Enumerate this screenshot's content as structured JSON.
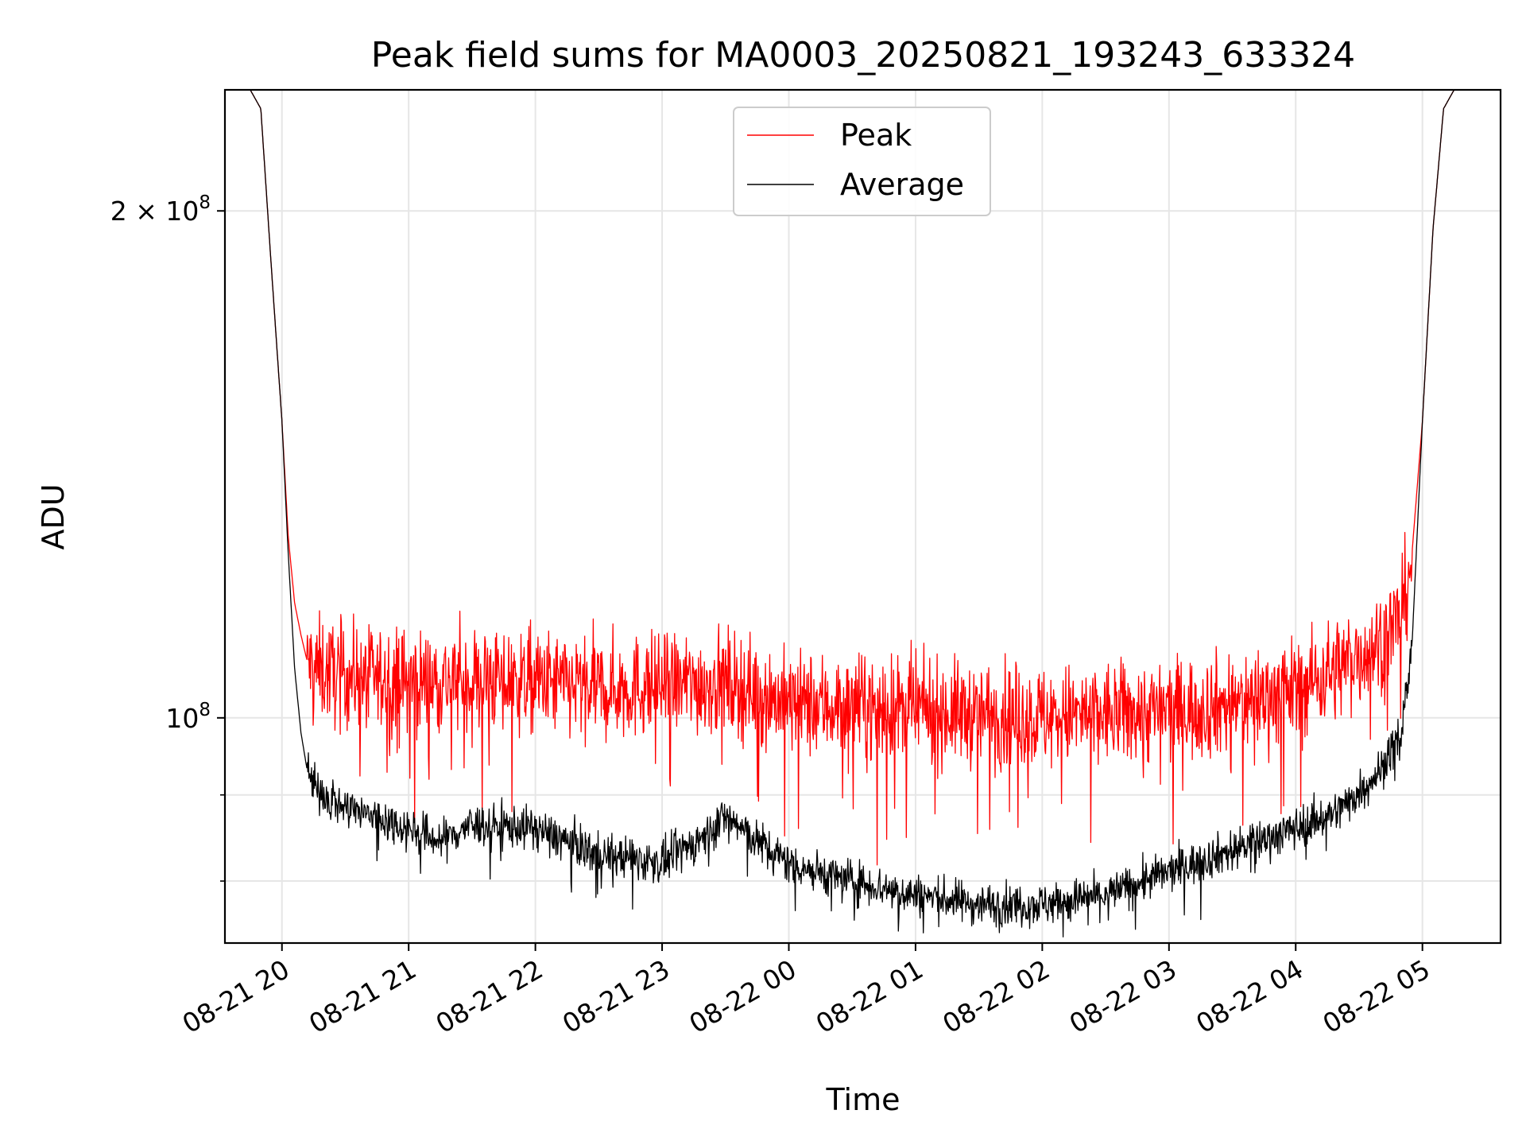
{
  "chart_data": {
    "type": "line",
    "title": "Peak field sums for MA0003_20250821_193243_633324",
    "xlabel": "Time",
    "ylabel": "ADU",
    "yscale": "log",
    "xlim": [
      "2025-08-21 19:33",
      "2025-08-22 05:37"
    ],
    "ylim": [
      73500000.0,
      236000000.0
    ],
    "grid": true,
    "legend_position": "upper center",
    "x_ticks": [
      {
        "value": "2025-08-21 20:00",
        "label": "08-21 20"
      },
      {
        "value": "2025-08-21 21:00",
        "label": "08-21 21"
      },
      {
        "value": "2025-08-21 22:00",
        "label": "08-21 22"
      },
      {
        "value": "2025-08-21 23:00",
        "label": "08-21 23"
      },
      {
        "value": "2025-08-22 00:00",
        "label": "08-22 00"
      },
      {
        "value": "2025-08-22 01:00",
        "label": "08-22 01"
      },
      {
        "value": "2025-08-22 02:00",
        "label": "08-22 02"
      },
      {
        "value": "2025-08-22 03:00",
        "label": "08-22 03"
      },
      {
        "value": "2025-08-22 04:00",
        "label": "08-22 04"
      },
      {
        "value": "2025-08-22 05:00",
        "label": "08-22 05"
      }
    ],
    "y_major_ticks": [
      {
        "value": 100000000,
        "label": "10^8"
      },
      {
        "value": 200000000,
        "label": "2 × 10^8"
      }
    ],
    "y_minor_ticks": [
      80000000,
      90000000
    ],
    "series": [
      {
        "name": "Peak",
        "color": "#ff0000",
        "x": [
          "2025-08-21 19:33",
          "2025-08-21 19:45",
          "2025-08-21 19:50",
          "2025-08-21 19:55",
          "2025-08-21 20:00",
          "2025-08-21 20:03",
          "2025-08-21 20:06",
          "2025-08-21 20:09",
          "2025-08-21 20:12",
          "2025-08-21 20:15",
          "2025-08-21 20:30",
          "2025-08-21 21:00",
          "2025-08-21 21:30",
          "2025-08-21 22:00",
          "2025-08-21 22:30",
          "2025-08-21 23:00",
          "2025-08-21 23:30",
          "2025-08-22 00:00",
          "2025-08-22 00:30",
          "2025-08-22 01:00",
          "2025-08-22 01:30",
          "2025-08-22 02:00",
          "2025-08-22 02:30",
          "2025-08-22 03:00",
          "2025-08-22 03:30",
          "2025-08-22 04:00",
          "2025-08-22 04:20",
          "2025-08-22 04:40",
          "2025-08-22 04:50",
          "2025-08-22 04:55",
          "2025-08-22 05:00",
          "2025-08-22 05:05",
          "2025-08-22 05:10",
          "2025-08-22 05:15",
          "2025-08-22 05:37"
        ],
        "y": [
          236000000,
          236000000,
          230000000,
          185000000,
          150000000,
          128000000,
          117000000,
          112000000,
          108000000,
          107000000,
          106000000,
          105000000,
          105500000,
          105000000,
          104000000,
          104500000,
          105000000,
          102000000,
          101500000,
          101000000,
          100500000,
          100000000,
          100500000,
          101000000,
          102000000,
          104000000,
          107000000,
          111000000,
          115000000,
          125000000,
          150000000,
          195000000,
          230000000,
          236000000,
          236000000
        ]
      },
      {
        "name": "Average",
        "color": "#000000",
        "x": [
          "2025-08-21 19:33",
          "2025-08-21 19:45",
          "2025-08-21 19:50",
          "2025-08-21 19:55",
          "2025-08-21 20:00",
          "2025-08-21 20:03",
          "2025-08-21 20:06",
          "2025-08-21 20:09",
          "2025-08-21 20:12",
          "2025-08-21 20:15",
          "2025-08-21 20:30",
          "2025-08-21 21:00",
          "2025-08-21 21:15",
          "2025-08-21 21:30",
          "2025-08-21 22:00",
          "2025-08-21 22:30",
          "2025-08-21 23:00",
          "2025-08-21 23:20",
          "2025-08-21 23:30",
          "2025-08-21 23:45",
          "2025-08-22 00:00",
          "2025-08-22 00:30",
          "2025-08-22 01:00",
          "2025-08-22 01:30",
          "2025-08-22 02:00",
          "2025-08-22 02:30",
          "2025-08-22 03:00",
          "2025-08-22 03:30",
          "2025-08-22 04:00",
          "2025-08-22 04:20",
          "2025-08-22 04:40",
          "2025-08-22 04:50",
          "2025-08-22 04:55",
          "2025-08-22 05:00",
          "2025-08-22 05:05",
          "2025-08-22 05:10",
          "2025-08-22 05:15",
          "2025-08-22 05:37"
        ],
        "y": [
          236000000,
          236000000,
          230000000,
          185000000,
          150000000,
          125000000,
          107000000,
          98000000,
          93000000,
          91000000,
          88500000,
          86000000,
          84500000,
          86500000,
          86000000,
          83000000,
          82000000,
          85000000,
          87500000,
          84500000,
          82000000,
          80000000,
          78500000,
          77500000,
          77500000,
          78500000,
          81000000,
          83500000,
          86000000,
          88000000,
          93000000,
          98000000,
          110000000,
          150000000,
          195000000,
          230000000,
          236000000,
          236000000
        ]
      }
    ]
  }
}
